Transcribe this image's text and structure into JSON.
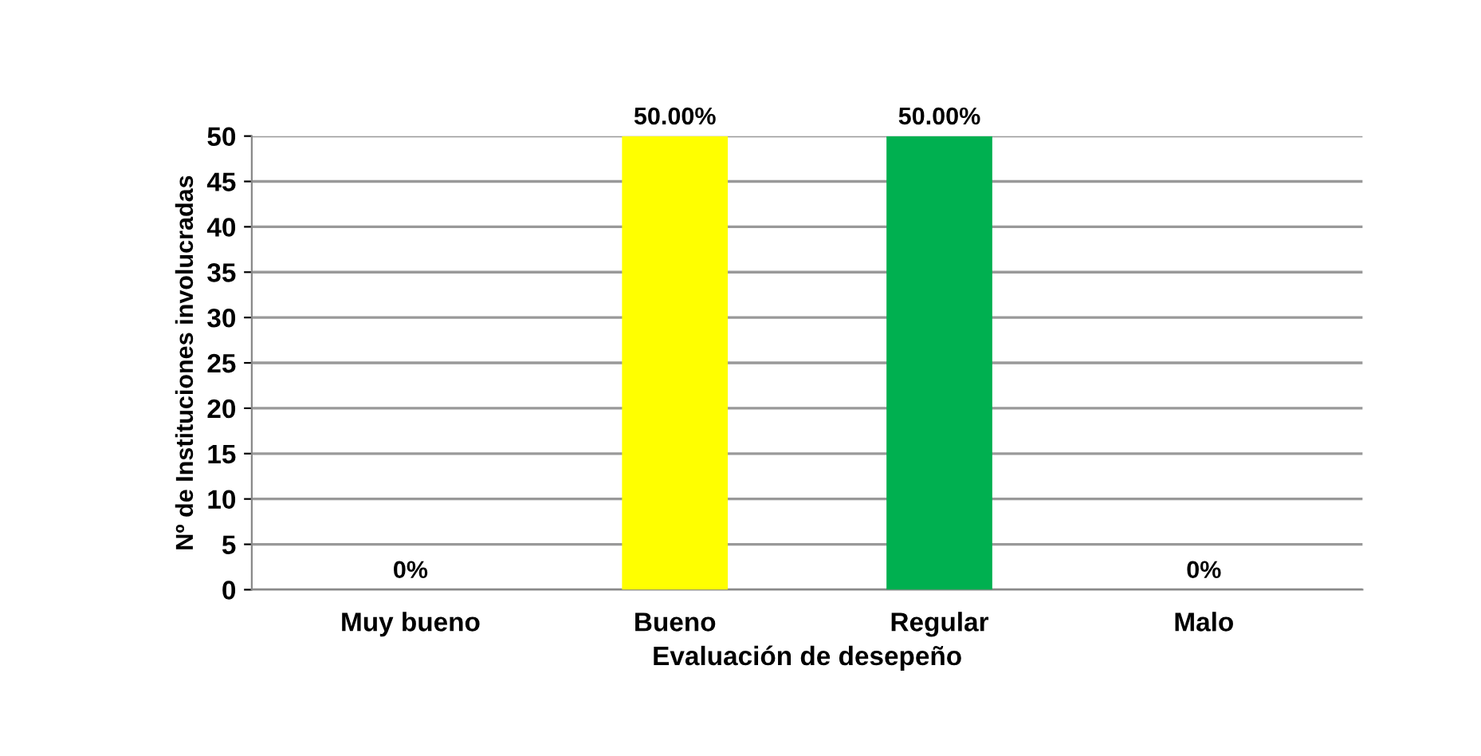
{
  "chart_data": {
    "type": "bar",
    "xlabel": "Evaluación de desepeño",
    "ylabel": "Nº de Instituciones involucradas",
    "categories": [
      "Muy bueno",
      "Bueno",
      "Regular",
      "Malo"
    ],
    "values": [
      0,
      50,
      50,
      0
    ],
    "value_labels": [
      "0%",
      "50.00%",
      "50.00%",
      "0%"
    ],
    "colors": [
      "#3a6496",
      "#ffff00",
      "#00b050",
      "#c00000"
    ],
    "ylim": [
      0,
      50
    ],
    "yticks": [
      0,
      5,
      10,
      15,
      20,
      25,
      30,
      35,
      40,
      45,
      50
    ],
    "grid": "y"
  }
}
